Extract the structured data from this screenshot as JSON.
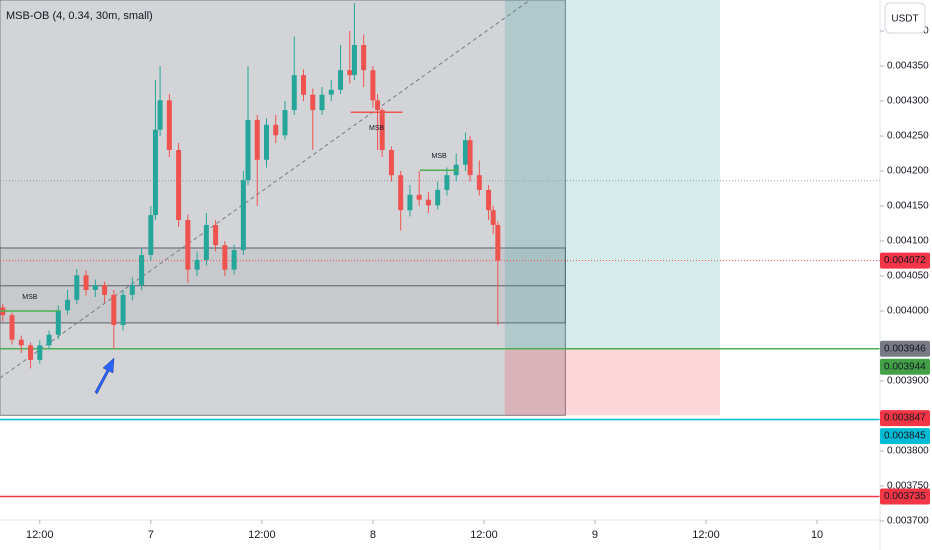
{
  "chart_data": {
    "type": "candlestick",
    "indicator": "MSB-OB (4, 0.34, 30m, small)",
    "currency": "USDT",
    "xlim": [
      -8.6,
      181.6
    ],
    "xticks": [
      {
        "value": 0,
        "label": "12:00"
      },
      {
        "value": 24,
        "label": "7"
      },
      {
        "value": 48,
        "label": "12:00"
      },
      {
        "value": 72,
        "label": "8"
      },
      {
        "value": 96,
        "label": "12:00"
      },
      {
        "value": 120,
        "label": "9"
      },
      {
        "value": 144,
        "label": "12:00"
      },
      {
        "value": 168,
        "label": "10"
      }
    ],
    "ylim": [
      0.0037014,
      0.0044443
    ],
    "yticks": [
      {
        "value": 0.0037,
        "label": "0.003700"
      },
      {
        "value": 0.00375,
        "label": "0.003750"
      },
      {
        "value": 0.0038,
        "label": "0.003800"
      },
      {
        "value": 0.00385,
        "label": "0.003850"
      },
      {
        "value": 0.0039,
        "label": "0.003900"
      },
      {
        "value": 0.00395,
        "label": "0.003950"
      },
      {
        "value": 0.004,
        "label": "0.004000"
      },
      {
        "value": 0.00405,
        "label": "0.004050"
      },
      {
        "value": 0.0041,
        "label": "0.004100"
      },
      {
        "value": 0.00415,
        "label": "0.004150"
      },
      {
        "value": 0.0042,
        "label": "0.004200"
      },
      {
        "value": 0.00425,
        "label": "0.004250"
      },
      {
        "value": 0.0043,
        "label": "0.004300"
      },
      {
        "value": 0.00435,
        "label": "0.004350"
      },
      {
        "value": 0.0044,
        "label": "0.004400"
      }
    ],
    "up_color": "#26a69a",
    "down_color": "#ef5350",
    "candles": {
      "x": [
        -8,
        -6,
        -4,
        -2,
        0,
        2,
        4,
        6,
        8,
        10,
        12,
        14,
        16,
        18,
        20,
        22,
        24,
        25,
        26,
        28,
        30,
        32,
        34,
        36,
        38,
        40,
        42,
        44,
        45,
        47,
        49,
        51,
        53,
        55,
        57,
        59,
        61,
        63,
        65,
        67,
        68,
        70,
        72,
        73,
        74,
        76,
        78,
        80,
        82,
        84,
        86,
        88,
        90,
        92,
        93,
        95,
        97,
        98,
        99
      ],
      "open": [
        0.004005,
        0.003994,
        0.003959,
        0.003951,
        0.00393,
        0.003951,
        0.003966,
        0.004001,
        0.004016,
        0.004051,
        0.00403,
        0.004037,
        0.004023,
        0.00398,
        0.004023,
        0.004037,
        0.00408,
        0.004137,
        0.004259,
        0.004301,
        0.00423,
        0.00413,
        0.004059,
        0.004073,
        0.004123,
        0.004094,
        0.004059,
        0.004087,
        0.004187,
        0.004273,
        0.004216,
        0.004266,
        0.004251,
        0.004287,
        0.004337,
        0.004309,
        0.004287,
        0.004309,
        0.004316,
        0.004344,
        0.004337,
        0.00438,
        0.004344,
        0.004301,
        0.004287,
        0.00423,
        0.004194,
        0.004144,
        0.004166,
        0.004159,
        0.004151,
        0.004173,
        0.004194,
        0.004209,
        0.004244,
        0.004194,
        0.004173,
        0.004144,
        0.004123
      ],
      "high": [
        0.00401,
        0.003998,
        0.003965,
        0.003955,
        0.003958,
        0.003972,
        0.004008,
        0.00403,
        0.00406,
        0.004058,
        0.004045,
        0.004042,
        0.00403,
        0.00403,
        0.004048,
        0.00409,
        0.00415,
        0.00433,
        0.00435,
        0.00431,
        0.00424,
        0.004138,
        0.004085,
        0.00414,
        0.00413,
        0.0041,
        0.004095,
        0.0042,
        0.00435,
        0.00428,
        0.004275,
        0.00428,
        0.0043,
        0.004392,
        0.004345,
        0.004318,
        0.00432,
        0.00433,
        0.00438,
        0.0044,
        0.00444,
        0.004395,
        0.00435,
        0.00431,
        0.00429,
        0.004235,
        0.0042,
        0.00418,
        0.0042,
        0.00417,
        0.004185,
        0.004205,
        0.004225,
        0.004255,
        0.00425,
        0.004215,
        0.00418,
        0.00415,
        0.004128
      ],
      "low": [
        0.003985,
        0.003952,
        0.00394,
        0.003918,
        0.003925,
        0.003945,
        0.00396,
        0.003995,
        0.00401,
        0.004022,
        0.00402,
        0.004012,
        0.003946,
        0.003972,
        0.004015,
        0.00403,
        0.004072,
        0.00413,
        0.00425,
        0.00422,
        0.00412,
        0.00404,
        0.00405,
        0.004065,
        0.004085,
        0.00405,
        0.004052,
        0.00408,
        0.00418,
        0.00415,
        0.004205,
        0.00424,
        0.004245,
        0.00428,
        0.0043,
        0.00423,
        0.00428,
        0.0043,
        0.00431,
        0.004325,
        0.00433,
        0.00432,
        0.00429,
        0.00423,
        0.00422,
        0.004185,
        0.004115,
        0.004135,
        0.00415,
        0.00414,
        0.004145,
        0.004165,
        0.004185,
        0.0042,
        0.004185,
        0.004165,
        0.00413,
        0.00411,
        0.00398
      ],
      "close": [
        0.003994,
        0.003959,
        0.003951,
        0.00393,
        0.003951,
        0.003966,
        0.004001,
        0.004016,
        0.004051,
        0.00403,
        0.004037,
        0.004023,
        0.00398,
        0.004023,
        0.004037,
        0.00408,
        0.004137,
        0.004259,
        0.004301,
        0.00423,
        0.00413,
        0.004059,
        0.004073,
        0.004123,
        0.004094,
        0.004059,
        0.004087,
        0.004187,
        0.004273,
        0.004216,
        0.004266,
        0.004251,
        0.004287,
        0.004337,
        0.004309,
        0.004287,
        0.004309,
        0.004316,
        0.004344,
        0.004337,
        0.00438,
        0.004344,
        0.004301,
        0.004287,
        0.00423,
        0.004194,
        0.004144,
        0.004166,
        0.004159,
        0.004151,
        0.004173,
        0.004194,
        0.004209,
        0.004244,
        0.004194,
        0.004173,
        0.004144,
        0.004123,
        0.004072
      ]
    },
    "zones": [
      {
        "x0": -8.6,
        "x1": 113.6,
        "top": 0.0044443,
        "bottom": 0.003851,
        "fill": "rgba(120,123,134,0.33)",
        "stroke": "#787b86"
      },
      {
        "x0": -8.6,
        "x1": 113.6,
        "top": 0.00409,
        "bottom": 0.003983,
        "fill": "rgba(120,123,134,0.12)",
        "stroke": "#5d606b",
        "mid": 0.004036
      },
      {
        "x0": 100.5,
        "x1": 147,
        "top": 0.0044443,
        "bottom": 0.003946,
        "fill": "rgba(38,166,154,0.2)"
      },
      {
        "x0": 100.5,
        "x1": 147,
        "top": 0.003946,
        "bottom": 0.003851,
        "fill": "rgba(242,54,69,0.2)"
      }
    ],
    "lines": [
      {
        "value": 0.004186,
        "color": "#9598a1",
        "dash": "1,2"
      },
      {
        "value": 0.004072,
        "color": "#ef5350",
        "dash": "1,2"
      },
      {
        "value": 0.003946,
        "color": "#4caf50",
        "dash": ""
      },
      {
        "value": 0.003845,
        "color": "#00bcd4",
        "dash": ""
      },
      {
        "value": 0.003735,
        "color": "#f23645",
        "dash": ""
      }
    ],
    "axis_labels": [
      {
        "value": 0.004072,
        "color": "#f23645"
      },
      {
        "value": 0.003946,
        "color": "#787b86"
      },
      {
        "value": 0.003944,
        "color": "#43a047"
      },
      {
        "value": 0.003847,
        "color": "#f23645"
      },
      {
        "value": 0.003845,
        "color": "#00bcd4"
      },
      {
        "value": 0.003735,
        "color": "#f23645"
      }
    ],
    "markers": [
      {
        "text": "MSB",
        "value": 0.004,
        "x0": -8.6,
        "x1": 4.3,
        "color": "#4caf50",
        "side": "above"
      },
      {
        "text": "MSB",
        "value": 0.004284,
        "x0": 67.2,
        "x1": 78.4,
        "color": "#ef5350",
        "side": "below"
      },
      {
        "text": "MSB",
        "value": 0.004201,
        "x0": 82.2,
        "x1": 90.4,
        "color": "#4caf50",
        "side": "above"
      }
    ]
  }
}
